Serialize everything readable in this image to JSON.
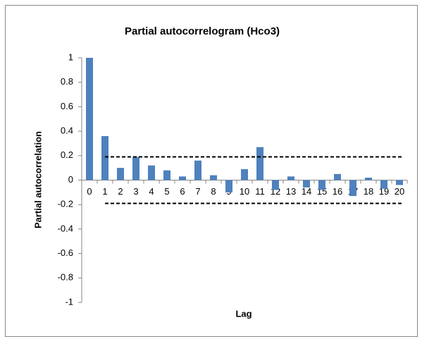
{
  "chart_data": {
    "type": "bar",
    "title": "Partial autocorrelogram (Hco3)",
    "x_label": "Lag",
    "y_label": "Partial autocorrelation",
    "categories": [
      "0",
      "1",
      "2",
      "3",
      "4",
      "5",
      "6",
      "7",
      "8",
      "9",
      "10",
      "11",
      "12",
      "13",
      "14",
      "15",
      "16",
      "17",
      "18",
      "19",
      "20"
    ],
    "values": [
      1,
      0.36,
      0.1,
      0.19,
      0.12,
      0.08,
      0.03,
      0.16,
      0.04,
      -0.1,
      0.09,
      0.27,
      -0.08,
      0.03,
      -0.06,
      -0.08,
      0.05,
      -0.13,
      0.02,
      -0.07,
      -0.04
    ],
    "color": "#4f81bd",
    "confidence_bounds": [
      0.19,
      -0.19
    ],
    "ylim": [
      -1,
      1
    ],
    "yticks": [
      -1,
      -0.8,
      -0.6,
      -0.4,
      -0.2,
      0,
      0.2,
      0.4,
      0.6,
      0.8,
      1
    ],
    "grid": false
  }
}
